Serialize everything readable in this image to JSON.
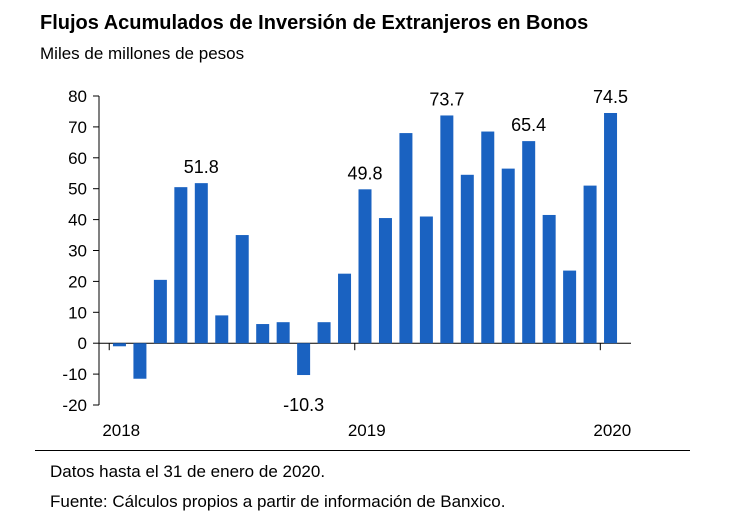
{
  "title": "Flujos Acumulados de Inversión de Extranjeros en Bonos",
  "subtitle": "Miles de millones de pesos",
  "notes": {
    "data_through": "Datos hasta el 31 de enero de 2020.",
    "source": "Fuente: Cálculos propios a partir de información de Banxico."
  },
  "colors": {
    "bar": "#1a62c1",
    "axis": "#000000"
  },
  "chart_data": {
    "type": "bar",
    "ylim": [
      -20,
      80
    ],
    "yticks": [
      -20,
      -10,
      0,
      10,
      20,
      30,
      40,
      50,
      60,
      70,
      80
    ],
    "ytick_labels": [
      "-20",
      "-10",
      "0",
      "10",
      "20",
      "30",
      "40",
      "50",
      "60",
      "70",
      "80"
    ],
    "xtick_labels": [
      "2018",
      "2019",
      "2020"
    ],
    "xtick_positions": [
      0,
      12,
      24
    ],
    "values": [
      -1,
      -11.5,
      20.5,
      50.5,
      51.8,
      9,
      35,
      6.2,
      6.8,
      -10.3,
      6.8,
      22.5,
      49.8,
      40.5,
      68,
      41,
      73.7,
      54.5,
      68.5,
      56.5,
      65.4,
      41.5,
      23.5,
      51,
      74.5
    ],
    "annotations": [
      {
        "index": 4,
        "text": "51.8"
      },
      {
        "index": 9,
        "text": "-10.3"
      },
      {
        "index": 12,
        "text": "49.8"
      },
      {
        "index": 16,
        "text": "73.7"
      },
      {
        "index": 20,
        "text": "65.4"
      },
      {
        "index": 24,
        "text": "74.5"
      }
    ],
    "grid": false
  }
}
